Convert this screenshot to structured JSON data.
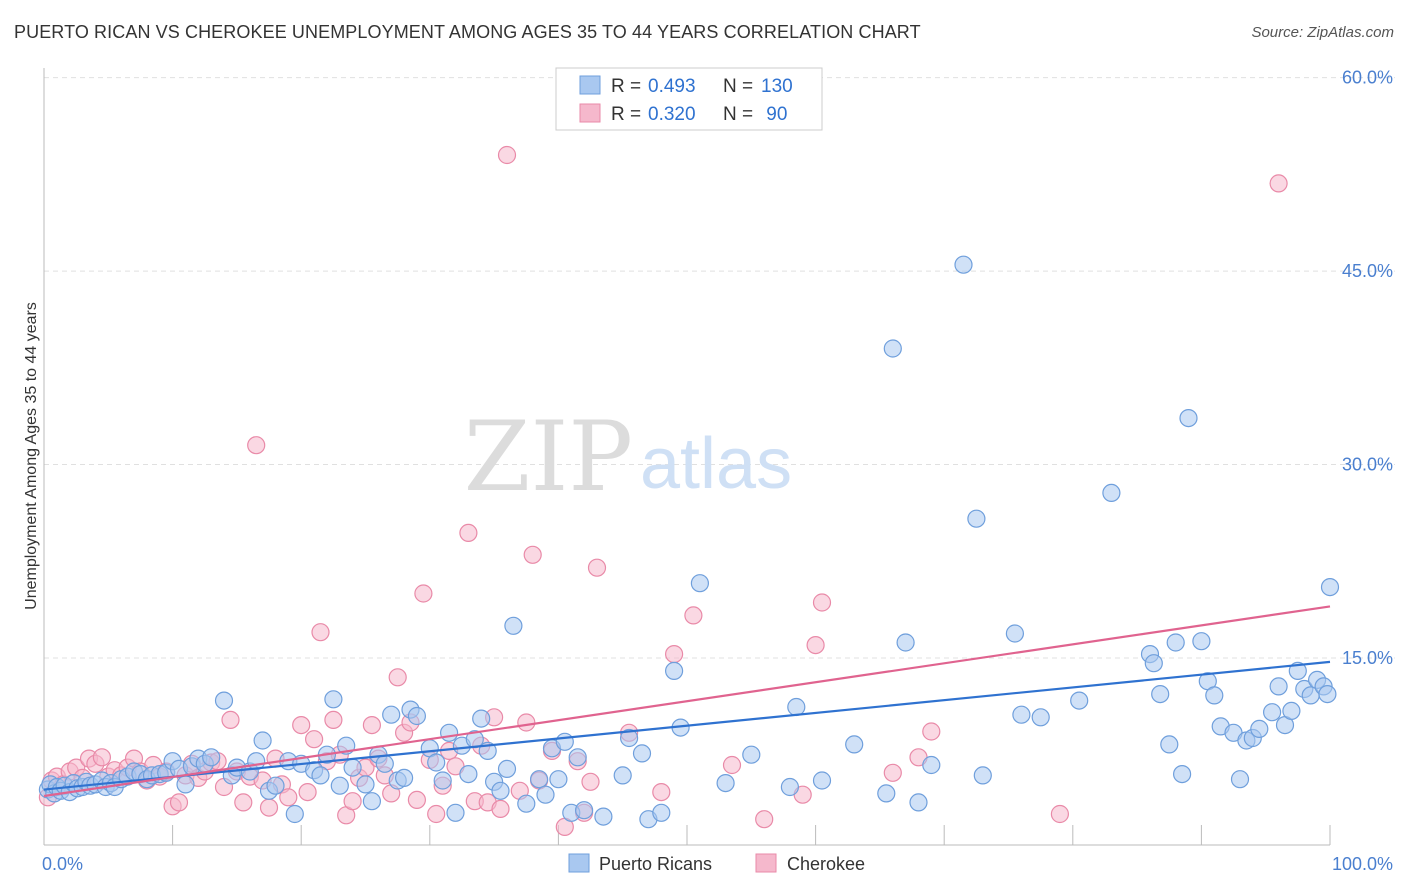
{
  "header": {
    "title": "PUERTO RICAN VS CHEROKEE UNEMPLOYMENT AMONG AGES 35 TO 44 YEARS CORRELATION CHART",
    "source": "Source: ZipAtlas.com"
  },
  "watermark": {
    "zip": "ZIP",
    "atlas": "atlas"
  },
  "legend_top": {
    "rows": [
      {
        "r_label": "R = ",
        "r_value": "0.493",
        "n_label": "N = ",
        "n_value": "130"
      },
      {
        "r_label": "R = ",
        "r_value": "0.320",
        "n_label": "N = ",
        "n_value": " 90"
      }
    ]
  },
  "legend_bottom": [
    "Puerto Ricans",
    "Cherokee"
  ],
  "colors": {
    "blue_fill": "#a9c8f0",
    "blue_stroke": "#6f9fdc",
    "blue_line": "#2f72d0",
    "pink_fill": "#f5b8cc",
    "pink_stroke": "#e98aa8",
    "pink_line": "#e0638f",
    "axis_label": "#4a7fcf",
    "grid": "#e0e0e0"
  },
  "chart_data": {
    "type": "scatter",
    "title": "PUERTO RICAN VS CHEROKEE UNEMPLOYMENT AMONG AGES 35 TO 44 YEARS CORRELATION CHART",
    "xlabel": "",
    "ylabel": "Unemployment Among Ages 35 to 44 years",
    "xlim": [
      0,
      100
    ],
    "ylim": [
      0,
      60
    ],
    "x_tick_labels": [
      "0.0%",
      "100.0%"
    ],
    "y_tick_labels": [
      "15.0%",
      "30.0%",
      "45.0%",
      "60.0%"
    ],
    "y_ticks": [
      15,
      30,
      45,
      60
    ],
    "grid": true,
    "legend_position": "top-center",
    "series": [
      {
        "name": "Puerto Ricans",
        "color": "#a9c8f0",
        "trend": {
          "x": [
            0,
            100
          ],
          "y": [
            4.8,
            14.7
          ]
        },
        "points": [
          [
            0.3,
            4.8
          ],
          [
            0.5,
            5.2
          ],
          [
            0.8,
            4.5
          ],
          [
            1.0,
            5.0
          ],
          [
            1.3,
            4.7
          ],
          [
            1.6,
            5.1
          ],
          [
            2.0,
            4.6
          ],
          [
            2.3,
            5.3
          ],
          [
            2.6,
            4.9
          ],
          [
            3.0,
            5.0
          ],
          [
            3.3,
            5.4
          ],
          [
            3.6,
            5.1
          ],
          [
            4.0,
            5.2
          ],
          [
            4.5,
            5.5
          ],
          [
            4.8,
            5.0
          ],
          [
            5.2,
            5.3
          ],
          [
            5.5,
            5.0
          ],
          [
            6.0,
            5.6
          ],
          [
            6.5,
            5.8
          ],
          [
            7.0,
            6.2
          ],
          [
            7.5,
            6.0
          ],
          [
            8.0,
            5.6
          ],
          [
            8.4,
            5.9
          ],
          [
            9.0,
            6.0
          ],
          [
            9.5,
            6.1
          ],
          [
            10.0,
            7.0
          ],
          [
            10.5,
            6.4
          ],
          [
            11.0,
            5.2
          ],
          [
            11.5,
            6.6
          ],
          [
            12.0,
            7.2
          ],
          [
            12.5,
            6.8
          ],
          [
            13.0,
            7.3
          ],
          [
            14.0,
            11.7
          ],
          [
            14.6,
            5.9
          ],
          [
            15.0,
            6.5
          ],
          [
            16.0,
            6.2
          ],
          [
            16.5,
            7.0
          ],
          [
            17.0,
            8.6
          ],
          [
            17.5,
            4.7
          ],
          [
            18.0,
            5.1
          ],
          [
            19.0,
            7.0
          ],
          [
            19.5,
            2.9
          ],
          [
            20.0,
            6.8
          ],
          [
            21.0,
            6.3
          ],
          [
            21.5,
            5.9
          ],
          [
            22.0,
            7.5
          ],
          [
            22.5,
            11.8
          ],
          [
            23.0,
            5.1
          ],
          [
            23.5,
            8.2
          ],
          [
            24.0,
            6.5
          ],
          [
            25.0,
            5.2
          ],
          [
            25.5,
            3.9
          ],
          [
            26.0,
            7.5
          ],
          [
            26.5,
            6.8
          ],
          [
            27.0,
            10.6
          ],
          [
            27.5,
            5.5
          ],
          [
            28.0,
            5.7
          ],
          [
            28.5,
            11.0
          ],
          [
            29.0,
            10.5
          ],
          [
            30.0,
            8.0
          ],
          [
            30.5,
            6.9
          ],
          [
            31.0,
            5.5
          ],
          [
            31.5,
            9.2
          ],
          [
            32.0,
            3.0
          ],
          [
            32.5,
            8.2
          ],
          [
            33.0,
            6.0
          ],
          [
            33.5,
            8.7
          ],
          [
            34.0,
            10.3
          ],
          [
            34.5,
            7.8
          ],
          [
            35.0,
            5.4
          ],
          [
            35.5,
            4.7
          ],
          [
            36.0,
            6.4
          ],
          [
            36.5,
            17.5
          ],
          [
            37.5,
            3.7
          ],
          [
            38.5,
            5.6
          ],
          [
            39.0,
            4.4
          ],
          [
            39.5,
            8.0
          ],
          [
            40.0,
            5.6
          ],
          [
            40.5,
            8.5
          ],
          [
            41.0,
            3.0
          ],
          [
            41.5,
            7.3
          ],
          [
            42.0,
            3.2
          ],
          [
            43.5,
            2.7
          ],
          [
            45.0,
            5.9
          ],
          [
            45.5,
            8.8
          ],
          [
            46.5,
            7.6
          ],
          [
            47.0,
            2.5
          ],
          [
            48.0,
            3.0
          ],
          [
            49.0,
            14.0
          ],
          [
            49.5,
            9.6
          ],
          [
            51.0,
            20.8
          ],
          [
            53.0,
            5.3
          ],
          [
            55.0,
            7.5
          ],
          [
            58.0,
            5.0
          ],
          [
            58.5,
            11.2
          ],
          [
            60.5,
            5.5
          ],
          [
            63.0,
            8.3
          ],
          [
            65.5,
            4.5
          ],
          [
            66.0,
            39.0
          ],
          [
            67.0,
            16.2
          ],
          [
            68.0,
            3.8
          ],
          [
            69.0,
            6.7
          ],
          [
            71.5,
            45.5
          ],
          [
            72.5,
            25.8
          ],
          [
            73.0,
            5.9
          ],
          [
            75.5,
            16.9
          ],
          [
            76.0,
            10.6
          ],
          [
            77.5,
            10.4
          ],
          [
            80.5,
            11.7
          ],
          [
            83.0,
            27.8
          ],
          [
            86.0,
            15.3
          ],
          [
            86.3,
            14.6
          ],
          [
            86.8,
            12.2
          ],
          [
            87.5,
            8.3
          ],
          [
            88.0,
            16.2
          ],
          [
            88.5,
            6.0
          ],
          [
            89.0,
            33.6
          ],
          [
            90.0,
            16.3
          ],
          [
            90.5,
            13.2
          ],
          [
            91.0,
            12.1
          ],
          [
            91.5,
            9.7
          ],
          [
            92.5,
            9.2
          ],
          [
            93.0,
            5.6
          ],
          [
            93.5,
            8.6
          ],
          [
            94.0,
            8.8
          ],
          [
            94.5,
            9.5
          ],
          [
            95.5,
            10.8
          ],
          [
            96.0,
            12.8
          ],
          [
            96.5,
            9.8
          ],
          [
            97.0,
            10.9
          ],
          [
            97.5,
            14.0
          ],
          [
            98.0,
            12.6
          ],
          [
            98.5,
            12.1
          ],
          [
            99.0,
            13.3
          ],
          [
            99.5,
            12.8
          ],
          [
            99.8,
            12.2
          ],
          [
            100.0,
            20.5
          ]
        ]
      },
      {
        "name": "Cherokee",
        "color": "#f5b8cc",
        "trend": {
          "x": [
            0,
            100
          ],
          "y": [
            4.3,
            19.0
          ]
        },
        "points": [
          [
            0.3,
            4.2
          ],
          [
            0.6,
            5.5
          ],
          [
            1.0,
            5.8
          ],
          [
            1.5,
            5.2
          ],
          [
            2.0,
            6.2
          ],
          [
            2.5,
            6.5
          ],
          [
            3.0,
            5.7
          ],
          [
            3.5,
            7.2
          ],
          [
            4.0,
            6.8
          ],
          [
            4.5,
            7.3
          ],
          [
            5.0,
            5.8
          ],
          [
            5.5,
            6.3
          ],
          [
            6.0,
            5.9
          ],
          [
            6.5,
            6.5
          ],
          [
            7.0,
            7.2
          ],
          [
            7.5,
            6.2
          ],
          [
            8.0,
            5.5
          ],
          [
            8.5,
            6.7
          ],
          [
            9.0,
            5.8
          ],
          [
            9.5,
            6.2
          ],
          [
            10.0,
            3.5
          ],
          [
            10.5,
            3.8
          ],
          [
            11.0,
            5.9
          ],
          [
            11.5,
            6.8
          ],
          [
            12.0,
            5.7
          ],
          [
            12.5,
            6.2
          ],
          [
            13.0,
            6.9
          ],
          [
            13.5,
            7.0
          ],
          [
            14.0,
            5.0
          ],
          [
            14.5,
            10.2
          ],
          [
            15.0,
            6.2
          ],
          [
            15.5,
            3.8
          ],
          [
            16.0,
            5.8
          ],
          [
            16.5,
            31.5
          ],
          [
            17.0,
            5.5
          ],
          [
            17.5,
            3.4
          ],
          [
            18.0,
            7.2
          ],
          [
            18.5,
            5.2
          ],
          [
            19.0,
            4.2
          ],
          [
            20.0,
            9.8
          ],
          [
            20.5,
            4.6
          ],
          [
            21.0,
            8.7
          ],
          [
            21.5,
            17.0
          ],
          [
            22.0,
            7.0
          ],
          [
            22.5,
            10.2
          ],
          [
            23.0,
            7.5
          ],
          [
            23.5,
            2.8
          ],
          [
            24.0,
            3.9
          ],
          [
            24.5,
            5.7
          ],
          [
            25.0,
            6.5
          ],
          [
            25.5,
            9.8
          ],
          [
            26.0,
            7.2
          ],
          [
            26.5,
            5.9
          ],
          [
            27.0,
            4.5
          ],
          [
            27.5,
            13.5
          ],
          [
            28.0,
            9.2
          ],
          [
            28.5,
            10.0
          ],
          [
            29.0,
            4.0
          ],
          [
            29.5,
            20.0
          ],
          [
            30.0,
            7.1
          ],
          [
            30.5,
            2.9
          ],
          [
            31.0,
            5.1
          ],
          [
            31.5,
            7.8
          ],
          [
            32.0,
            6.6
          ],
          [
            33.0,
            24.7
          ],
          [
            33.5,
            3.9
          ],
          [
            34.0,
            8.2
          ],
          [
            34.5,
            3.8
          ],
          [
            35.0,
            10.4
          ],
          [
            35.5,
            3.3
          ],
          [
            36.0,
            54.0
          ],
          [
            37.0,
            4.7
          ],
          [
            37.5,
            10.0
          ],
          [
            38.0,
            23.0
          ],
          [
            38.5,
            5.5
          ],
          [
            39.5,
            7.8
          ],
          [
            40.5,
            1.9
          ],
          [
            41.5,
            7.0
          ],
          [
            42.0,
            3.0
          ],
          [
            42.5,
            5.4
          ],
          [
            43.0,
            22.0
          ],
          [
            45.5,
            9.2
          ],
          [
            48.0,
            4.6
          ],
          [
            49.0,
            15.3
          ],
          [
            50.5,
            18.3
          ],
          [
            53.5,
            6.7
          ],
          [
            56.0,
            2.5
          ],
          [
            59.0,
            4.4
          ],
          [
            60.0,
            16.0
          ],
          [
            60.5,
            19.3
          ],
          [
            66.0,
            6.1
          ],
          [
            68.0,
            7.3
          ],
          [
            69.0,
            9.3
          ],
          [
            79.0,
            2.9
          ],
          [
            96.0,
            51.8
          ]
        ]
      }
    ]
  }
}
